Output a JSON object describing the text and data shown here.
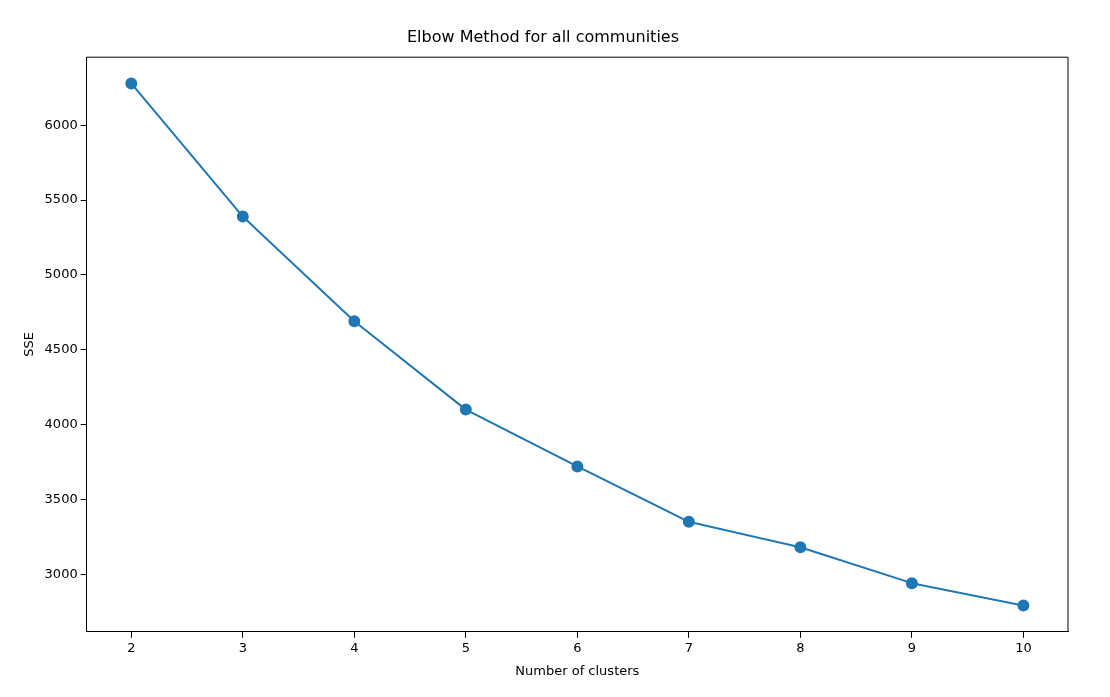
{
  "chart_data": {
    "type": "line",
    "title": "Elbow Method for all communities",
    "xlabel": "Number of clusters",
    "ylabel": "SSE",
    "x": [
      2,
      3,
      4,
      5,
      6,
      7,
      8,
      9,
      10
    ],
    "series": [
      {
        "color": "#1f77b4",
        "values": [
          6280,
          5390,
          4690,
          4100,
          3720,
          3350,
          3180,
          2940,
          2790
        ]
      }
    ],
    "xlim": [
      1.6,
      10.4
    ],
    "xticks": [
      2,
      3,
      4,
      5,
      6,
      7,
      8,
      9,
      10
    ],
    "ylim": [
      2615,
      6455
    ],
    "yticks": [
      3000,
      3500,
      4000,
      4500,
      5000,
      5500,
      6000
    ],
    "marker": "circle",
    "line_style": "solid",
    "grid": false,
    "legend": false
  }
}
